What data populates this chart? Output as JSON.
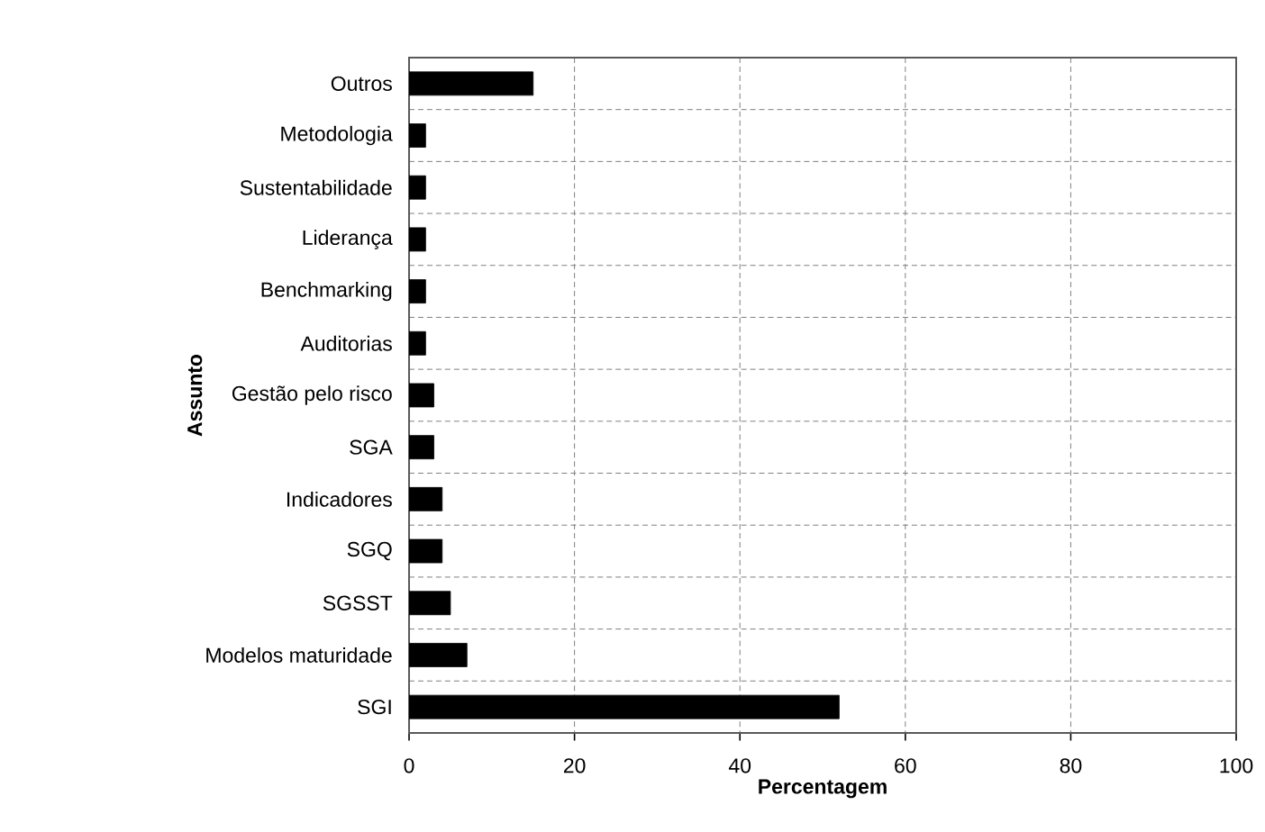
{
  "chart_data": {
    "type": "bar",
    "orientation": "horizontal",
    "xlabel": "Percentagem",
    "ylabel": "Assunto",
    "categories": [
      "Outros",
      "Metodologia",
      "Sustentabilidade",
      "Liderança",
      "Benchmarking",
      "Auditorias",
      "Gestão pelo risco",
      "SGA",
      "Indicadores",
      "SGQ",
      "SGSST",
      "Modelos maturidade",
      "SGI"
    ],
    "values": [
      15,
      2,
      2,
      2,
      2,
      2,
      3,
      3,
      4,
      4,
      5,
      7,
      52
    ],
    "color": "#000000",
    "xlim": [
      0,
      100
    ],
    "xticks": [
      0,
      20,
      40,
      60,
      80,
      100
    ],
    "grid": true
  }
}
